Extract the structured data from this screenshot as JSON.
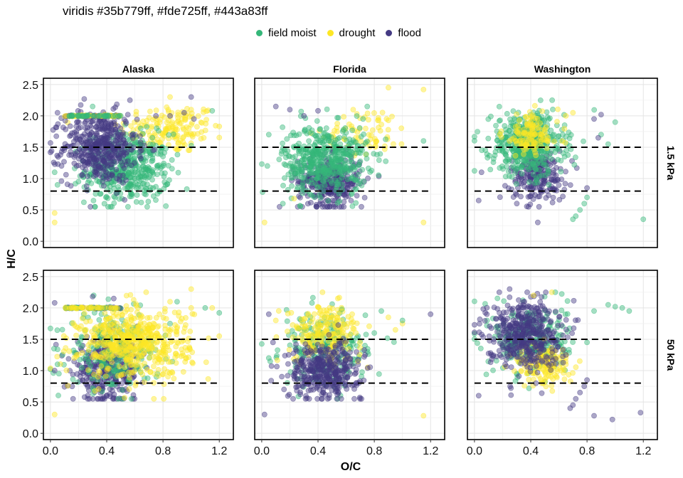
{
  "chart_data": {
    "type": "scatter",
    "title": "viridis #35b779ff, #fde725ff, #443a83ff",
    "xlabel": "O/C",
    "ylabel": "H/C",
    "xlim": [
      -0.05,
      1.3
    ],
    "ylim": [
      -0.1,
      2.6
    ],
    "x_ticks": [
      0.0,
      0.4,
      0.8,
      1.2
    ],
    "x_tick_labels": [
      "0.0",
      "0.4",
      "0.8",
      "1.2"
    ],
    "y_ticks": [
      0.0,
      0.5,
      1.0,
      1.5,
      2.0,
      2.5
    ],
    "y_tick_labels": [
      "0.0",
      "0.5",
      "1.0",
      "1.5",
      "2.0",
      "2.5"
    ],
    "grid": true,
    "legend_position": "top",
    "columns": [
      "Alaska",
      "Florida",
      "Washington"
    ],
    "rows": [
      "1.5 kPa",
      "50 kPa"
    ],
    "reference_lines_y": [
      0.8,
      1.5
    ],
    "reference_line_x_range": [
      0.0,
      1.2
    ],
    "series": [
      {
        "name": "field moist",
        "color": "#35b779"
      },
      {
        "name": "drought",
        "color": "#fde725"
      },
      {
        "name": "flood",
        "color": "#443a83"
      }
    ],
    "point_alpha": 0.45,
    "panels": [
      {
        "column": "Alaska",
        "row": "1.5 kPa",
        "clusters": [
          {
            "series": "drought",
            "cx": 0.85,
            "cy": 1.8,
            "sx": 0.18,
            "sy": 0.2,
            "n": 160
          },
          {
            "series": "field moist",
            "cx": 0.55,
            "cy": 1.15,
            "sx": 0.15,
            "sy": 0.28,
            "n": 420
          },
          {
            "series": "flood",
            "cx": 0.35,
            "cy": 1.5,
            "sx": 0.13,
            "sy": 0.28,
            "n": 460
          }
        ],
        "extras": [
          {
            "series": "field moist",
            "points": [
              [
                0.03,
                1.1
              ],
              [
                0.05,
                0.9
              ],
              [
                0.3,
                2.15
              ],
              [
                1.15,
                2.08
              ]
            ]
          },
          {
            "series": "drought",
            "points": [
              [
                0.03,
                0.45
              ],
              [
                0.03,
                0.3
              ],
              [
                1.0,
                2.1
              ],
              [
                0.85,
                2.3
              ]
            ]
          },
          {
            "series": "flood",
            "points": [
              [
                0.24,
                2.27
              ],
              [
                1.0,
                2.3
              ],
              [
                0.05,
                2.05
              ],
              [
                0.85,
                2.0
              ],
              [
                0.55,
                2.02
              ],
              [
                0.75,
                2.0
              ],
              [
                0.95,
                2.05
              ],
              [
                1.02,
                1.95
              ]
            ]
          }
        ],
        "bands": [
          {
            "y": 2.0,
            "x0": 0.1,
            "x1": 0.5,
            "series": [
              "flood",
              "drought",
              "field moist"
            ],
            "n": 40
          }
        ]
      },
      {
        "column": "Florida",
        "row": "1.5 kPa",
        "clusters": [
          {
            "series": "drought",
            "cx": 0.75,
            "cy": 1.75,
            "sx": 0.15,
            "sy": 0.18,
            "n": 70
          },
          {
            "series": "flood",
            "cx": 0.48,
            "cy": 0.95,
            "sx": 0.11,
            "sy": 0.2,
            "n": 330
          },
          {
            "series": "field moist",
            "cx": 0.45,
            "cy": 1.3,
            "sx": 0.15,
            "sy": 0.28,
            "n": 460
          }
        ],
        "extras": [
          {
            "series": "field moist",
            "points": [
              [
                0.75,
                2.15
              ],
              [
                0.72,
                1.95
              ],
              [
                1.15,
                1.6
              ],
              [
                0.05,
                1.7
              ],
              [
                0.04,
                1.2
              ],
              [
                0.15,
                0.6
              ]
            ]
          },
          {
            "series": "drought",
            "points": [
              [
                0.9,
                2.45
              ],
              [
                1.15,
                2.42
              ],
              [
                0.02,
                0.3
              ],
              [
                1.15,
                0.3
              ],
              [
                0.65,
                2.1
              ],
              [
                0.23,
                0.68
              ]
            ]
          },
          {
            "series": "flood",
            "points": [
              [
                0.1,
                2.15
              ],
              [
                0.2,
                2.1
              ],
              [
                0.3,
                2.0
              ],
              [
                0.4,
                2.08
              ]
            ]
          }
        ],
        "bands": []
      },
      {
        "column": "Washington",
        "row": "1.5 kPa",
        "clusters": [
          {
            "series": "flood",
            "cx": 0.45,
            "cy": 1.05,
            "sx": 0.1,
            "sy": 0.2,
            "n": 210
          },
          {
            "series": "field moist",
            "cx": 0.38,
            "cy": 1.55,
            "sx": 0.13,
            "sy": 0.25,
            "n": 460
          },
          {
            "series": "drought",
            "cx": 0.4,
            "cy": 1.7,
            "sx": 0.1,
            "sy": 0.18,
            "n": 120
          }
        ],
        "extras": [
          {
            "series": "field moist",
            "points": [
              [
                0.8,
                0.7
              ],
              [
                0.78,
                0.6
              ],
              [
                0.75,
                0.5
              ],
              [
                0.7,
                0.35
              ],
              [
                0.72,
                0.4
              ],
              [
                0.9,
                1.7
              ],
              [
                1.0,
                1.9
              ],
              [
                1.2,
                0.35
              ],
              [
                0.95,
                1.55
              ]
            ]
          },
          {
            "series": "flood",
            "points": [
              [
                0.85,
                1.95
              ],
              [
                0.9,
                2.02
              ],
              [
                0.45,
                0.3
              ],
              [
                0.8,
                0.85
              ],
              [
                0.05,
                1.1
              ],
              [
                0.03,
                0.65
              ],
              [
                0.88,
                1.65
              ]
            ]
          },
          {
            "series": "drought",
            "points": [
              [
                0.7,
                2.05
              ],
              [
                0.65,
                2.0
              ]
            ]
          }
        ],
        "bands": []
      },
      {
        "column": "Alaska",
        "row": "50 kPa",
        "clusters": [
          {
            "series": "flood",
            "cx": 0.4,
            "cy": 1.0,
            "sx": 0.12,
            "sy": 0.25,
            "n": 320
          },
          {
            "series": "field moist",
            "cx": 0.45,
            "cy": 1.3,
            "sx": 0.16,
            "sy": 0.3,
            "n": 220
          },
          {
            "series": "drought",
            "cx": 0.6,
            "cy": 1.45,
            "sx": 0.2,
            "sy": 0.28,
            "n": 520
          }
        ],
        "extras": [
          {
            "series": "drought",
            "points": [
              [
                0.85,
                2.1
              ],
              [
                0.03,
                0.3
              ],
              [
                1.0,
                2.3
              ],
              [
                1.0,
                2.0
              ],
              [
                1.15,
                2.0
              ],
              [
                0.68,
                2.25
              ]
            ]
          },
          {
            "series": "field moist",
            "points": [
              [
                0.05,
                1.1
              ],
              [
                0.06,
                0.95
              ],
              [
                1.1,
                2.0
              ],
              [
                1.2,
                1.92
              ],
              [
                0.85,
                1.75
              ],
              [
                0.9,
                2.1
              ]
            ]
          },
          {
            "series": "flood",
            "points": [
              [
                0.03,
                2.08
              ],
              [
                0.03,
                1.0
              ],
              [
                0.45,
                2.15
              ],
              [
                0.3,
                2.18
              ]
            ]
          }
        ],
        "bands": [
          {
            "y": 2.0,
            "x0": 0.1,
            "x1": 0.5,
            "series": [
              "flood",
              "field moist",
              "drought"
            ],
            "n": 36
          }
        ]
      },
      {
        "column": "Florida",
        "row": "50 kPa",
        "clusters": [
          {
            "series": "field moist",
            "cx": 0.45,
            "cy": 1.35,
            "sx": 0.15,
            "sy": 0.3,
            "n": 230
          },
          {
            "series": "drought",
            "cx": 0.45,
            "cy": 1.6,
            "sx": 0.13,
            "sy": 0.22,
            "n": 200
          },
          {
            "series": "flood",
            "cx": 0.45,
            "cy": 1.0,
            "sx": 0.13,
            "sy": 0.22,
            "n": 380
          }
        ],
        "extras": [
          {
            "series": "drought",
            "points": [
              [
                0.95,
                1.65
              ],
              [
                0.9,
                1.85
              ],
              [
                1.0,
                1.75
              ],
              [
                1.15,
                0.28
              ],
              [
                0.1,
                1.8
              ]
            ]
          },
          {
            "series": "field moist",
            "points": [
              [
                0.85,
                1.95
              ],
              [
                1.0,
                1.8
              ],
              [
                0.8,
                1.6
              ],
              [
                0.05,
                1.2
              ]
            ]
          },
          {
            "series": "flood",
            "points": [
              [
                0.02,
                0.3
              ],
              [
                0.05,
                1.9
              ],
              [
                1.2,
                1.9
              ],
              [
                0.08,
                1.45
              ]
            ]
          }
        ],
        "bands": []
      },
      {
        "column": "Washington",
        "row": "50 kPa",
        "clusters": [
          {
            "series": "field moist",
            "cx": 0.4,
            "cy": 1.5,
            "sx": 0.13,
            "sy": 0.28,
            "n": 260
          },
          {
            "series": "drought",
            "cx": 0.5,
            "cy": 1.1,
            "sx": 0.1,
            "sy": 0.18,
            "n": 160
          },
          {
            "series": "flood",
            "cx": 0.35,
            "cy": 1.6,
            "sx": 0.13,
            "sy": 0.28,
            "n": 430
          }
        ],
        "extras": [
          {
            "series": "field moist",
            "points": [
              [
                0.85,
                1.95
              ],
              [
                0.95,
                2.05
              ],
              [
                1.0,
                2.02
              ],
              [
                1.05,
                2.0
              ],
              [
                1.1,
                1.95
              ],
              [
                0.8,
                1.45
              ]
            ]
          },
          {
            "series": "flood",
            "points": [
              [
                0.8,
                0.85
              ],
              [
                0.78,
                0.75
              ],
              [
                0.75,
                0.65
              ],
              [
                0.72,
                0.55
              ],
              [
                0.7,
                0.45
              ],
              [
                0.68,
                0.4
              ],
              [
                0.85,
                0.28
              ],
              [
                0.98,
                0.22
              ],
              [
                1.18,
                0.33
              ],
              [
                0.03,
                0.6
              ],
              [
                0.25,
                2.3
              ]
            ]
          },
          {
            "series": "drought",
            "points": [
              [
                0.55,
                2.25
              ],
              [
                0.42,
                2.2
              ]
            ]
          }
        ],
        "bands": []
      }
    ]
  }
}
